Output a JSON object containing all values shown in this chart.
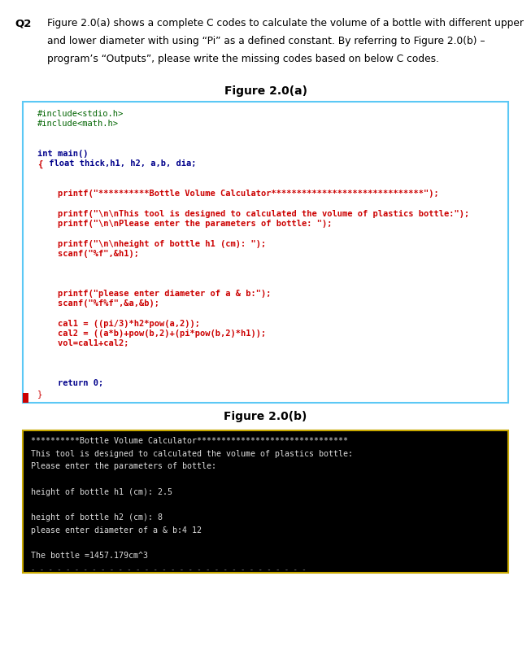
{
  "q2_label": "Q2",
  "q2_text_line1": "Figure 2.0(a) shows a complete C codes to calculate the volume of a bottle with different upper",
  "q2_text_line2": "and lower diameter with using “Pi” as a defined constant. By referring to Figure 2.0(b) –",
  "q2_text_line3": "program’s “Outputs”, please write the missing codes based on below C codes.",
  "fig_a_title": "Figure 2.0(a)",
  "fig_b_title": "Figure 2.0(b)",
  "code_a_lines": [
    {
      "text": "#include<stdio.h>",
      "color": "#006400",
      "bold": false
    },
    {
      "text": "#include<math.h>",
      "color": "#006400",
      "bold": false
    },
    {
      "text": "",
      "color": "#000000",
      "bold": false
    },
    {
      "text": "",
      "color": "#000000",
      "bold": false
    },
    {
      "text": "int main()",
      "color": "#00008B",
      "bold": true
    },
    {
      "text": "{ float thick,h1, h2, a,b, dia;",
      "color": "#00008B",
      "bold": true,
      "special": "brace_red"
    },
    {
      "text": "",
      "color": "#000000",
      "bold": false
    },
    {
      "text": "",
      "color": "#000000",
      "bold": false
    },
    {
      "text": "    printf(\"**********Bottle Volume Calculator******************************\");",
      "color": "#CC0000",
      "bold": true
    },
    {
      "text": "",
      "color": "#000000",
      "bold": false
    },
    {
      "text": "    printf(\"\\n\\nThis tool is designed to calculated the volume of plastics bottle:\");",
      "color": "#CC0000",
      "bold": true
    },
    {
      "text": "    printf(\"\\n\\nPlease enter the parameters of bottle: \");",
      "color": "#CC0000",
      "bold": true
    },
    {
      "text": "",
      "color": "#000000",
      "bold": false
    },
    {
      "text": "    printf(\"\\n\\nheight of bottle h1 (cm): \");",
      "color": "#CC0000",
      "bold": true
    },
    {
      "text": "    scanf(\"%f\",&h1);",
      "color": "#CC0000",
      "bold": true
    },
    {
      "text": "",
      "color": "#000000",
      "bold": false
    },
    {
      "text": "",
      "color": "#000000",
      "bold": false
    },
    {
      "text": "",
      "color": "#000000",
      "bold": false
    },
    {
      "text": "    printf(\"please enter diameter of a & b:\");",
      "color": "#CC0000",
      "bold": true
    },
    {
      "text": "    scanf(\"%f%f\",&a,&b);",
      "color": "#CC0000",
      "bold": true
    },
    {
      "text": "",
      "color": "#000000",
      "bold": false
    },
    {
      "text": "    cal1 = ((pi/3)*h2*pow(a,2));",
      "color": "#CC0000",
      "bold": true
    },
    {
      "text": "    cal2 = ((a*b)+pow(b,2)+(pi*pow(b,2)*h1));",
      "color": "#CC0000",
      "bold": true
    },
    {
      "text": "    vol=cal1+cal2;",
      "color": "#CC0000",
      "bold": true
    },
    {
      "text": "",
      "color": "#000000",
      "bold": false
    },
    {
      "text": "",
      "color": "#000000",
      "bold": false
    },
    {
      "text": "",
      "color": "#000000",
      "bold": false
    },
    {
      "text": "    return 0;",
      "color": "#00008B",
      "bold": true
    },
    {
      "text": "}",
      "color": "#CC0000",
      "bold": false,
      "special": "brace_red_bottom"
    }
  ],
  "code_b_lines": [
    "**********Bottle Volume Calculator*******************************",
    "This tool is designed to calculated the volume of plastics bottle:",
    "Please enter the parameters of bottle:",
    "",
    "height of bottle h1 (cm): 2.5",
    "",
    "height of bottle h2 (cm): 8",
    "please enter diameter of a & b:4 12",
    "",
    "The bottle =1457.179cm^3"
  ],
  "box_a_border": "#5BC8F5",
  "box_b_border": "#C8A800",
  "box_a_bg": "#FFFFFF",
  "box_b_bg": "#000000",
  "box_b_text_color": "#DDDDDD",
  "page_bg": "#FFFFFF",
  "red_bar": "#CC0000"
}
